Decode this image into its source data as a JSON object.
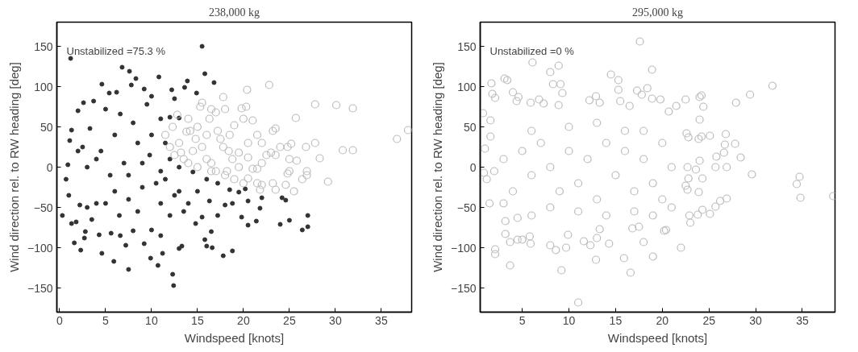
{
  "chart_data": [
    {
      "type": "scatter",
      "title": "238,000 kg",
      "xlabel": "Windspeed [knots]",
      "ylabel": "Wind direction rel. to RW heading [deg]",
      "annotations": [
        "Unstabilized =75.3 %"
      ],
      "xlim": [
        -0.3,
        38.3
      ],
      "ylim": [
        -180,
        180
      ],
      "xticks": [
        0,
        5,
        10,
        15,
        20,
        25,
        30,
        35
      ],
      "yticks": [
        -150,
        -100,
        -50,
        0,
        50,
        100,
        150
      ],
      "grid": false,
      "series": [
        {
          "color": "#333333",
          "marker": "circle",
          "x": [
            0.3,
            1.2,
            15.5,
            6.8,
            7.6,
            8.3,
            10.8,
            15.8,
            16.8,
            13.9,
            4.6,
            13.6,
            12.2,
            14.9,
            1.3,
            1.1,
            0.9,
            0.7,
            1.0,
            1.3,
            1.6,
            2.3,
            2.7,
            4.6,
            5.9,
            7.5,
            7.2,
            9.9,
            10.7,
            12.3,
            12.4,
            11.2,
            13.0,
            13.3,
            16.0,
            16.6,
            17.8,
            18.8,
            19.8,
            20.5,
            21.4,
            21.8,
            22.0,
            24.0,
            25.0,
            26.4,
            27.0,
            27.0,
            24.2,
            24.6,
            20.2,
            20.5,
            19.5,
            18.5,
            17.2,
            16.0,
            14.5,
            13.0,
            12.0,
            11.5,
            12.0,
            13.0,
            12.5,
            11.0,
            2.0,
            2.6,
            3.7,
            5.4,
            6.2,
            7.8,
            9.2,
            10.0,
            9.5,
            8.0,
            6.6,
            5.0,
            3.3,
            2.5,
            3.0,
            4.5,
            5.5,
            7.0,
            8.5,
            9.8,
            10.5,
            11.5,
            9.0,
            7.5,
            6.0,
            4.0,
            3.0,
            2.2,
            2.8,
            4.3,
            5.6,
            6.6,
            8.0,
            9.2,
            10.0,
            11.0,
            12.0,
            13.5,
            14.8,
            15.5,
            16.3,
            17.2,
            18.0,
            18.8,
            15.0,
            13.0,
            11.0,
            8.5,
            6.5,
            5.0,
            3.5,
            1.8,
            9.0,
            6.0,
            4.0,
            2.0,
            7.5,
            10.0,
            11.0,
            12.5,
            14.0,
            15.8,
            16.5
          ],
          "values": [
            -60,
            135,
            150,
            124,
            119,
            110,
            112,
            116,
            105,
            107,
            103,
            99,
            96,
            92,
            46,
            33,
            3,
            -15,
            -35,
            -70,
            -94,
            -103,
            -88,
            -107,
            -117,
            -127,
            -97,
            -113,
            -122,
            -133,
            -147,
            -107,
            -101,
            -98,
            -98,
            -100,
            -110,
            -104,
            -62,
            -72,
            -67,
            -51,
            -38,
            -71,
            -66,
            -78,
            -74,
            -60,
            -38,
            -41,
            -27,
            -42,
            -31,
            -28,
            -20,
            -15,
            -6,
            0,
            10,
            30,
            62,
            61,
            85,
            60,
            70,
            80,
            82,
            92,
            93,
            102,
            97,
            88,
            78,
            55,
            66,
            72,
            48,
            25,
            0,
            20,
            -10,
            5,
            30,
            15,
            -20,
            -15,
            -25,
            -40,
            -30,
            -45,
            -50,
            -47,
            -80,
            -84,
            -82,
            -85,
            -79,
            -95,
            -78,
            -85,
            -60,
            -55,
            -70,
            -62,
            -42,
            -60,
            -47,
            -45,
            -30,
            -30,
            -45,
            -55,
            -60,
            -45,
            -65,
            -68,
            5,
            40,
            10,
            20,
            -10,
            40,
            -5,
            -35,
            -45,
            -90,
            -80
          ]
        },
        {
          "color": "#bbbbbb",
          "marker": "circle_open",
          "x": [
            12.8,
            12.3,
            14.0,
            15.5,
            15.3,
            16.5,
            17.0,
            17.8,
            18.0,
            19.8,
            20.3,
            20.4,
            22.8,
            20.0,
            21.0,
            19.0,
            18.5,
            17.5,
            16.0,
            15.0,
            14.2,
            13.0,
            12.0,
            11.5,
            12.5,
            13.5,
            14.5,
            15.5,
            16.5,
            17.0,
            18.0,
            19.0,
            20.0,
            20.5,
            21.5,
            21.8,
            22.0,
            21.0,
            22.0,
            22.5,
            23.0,
            23.5,
            24.0,
            24.8,
            25.2,
            25.0,
            25.8,
            25.0,
            24.8,
            24.6,
            25.5,
            23.2,
            23.5,
            26.9,
            26.9,
            26.4,
            26.8,
            27.8,
            28.3,
            29.2,
            27.8,
            30.1,
            31.9,
            30.8,
            31.9,
            36.7,
            37.9,
            25.7,
            23.5,
            23.2,
            22.0,
            21.5,
            20.5,
            19.5,
            18.8,
            17.8,
            16.0,
            15.0,
            14.0,
            13.2,
            16.5,
            18.2,
            19.5,
            20.5,
            21.5,
            14.8,
            13.8,
            16.3,
            17.2,
            18.4
          ],
          "values": [
            65,
            50,
            60,
            80,
            75,
            72,
            68,
            87,
            72,
            73,
            75,
            96,
            102,
            60,
            58,
            52,
            40,
            35,
            40,
            50,
            45,
            30,
            25,
            40,
            15,
            10,
            20,
            25,
            5,
            -5,
            -10,
            -15,
            -20,
            -14,
            -20,
            -28,
            -22,
            -2,
            5,
            15,
            18,
            15,
            25,
            25,
            29,
            10,
            8,
            -5,
            -8,
            -22,
            -30,
            -20,
            -28,
            -5,
            -10,
            -15,
            25,
            30,
            11,
            -18,
            78,
            77,
            73,
            21,
            21,
            35,
            46,
            61,
            48,
            45,
            30,
            40,
            30,
            18,
            10,
            25,
            10,
            0,
            5,
            18,
            -5,
            -5,
            0,
            12,
            -2,
            35,
            44,
            60,
            45,
            20
          ]
        }
      ]
    },
    {
      "type": "scatter",
      "title": "295,000 kg",
      "xlabel": "Windspeed [knots]",
      "ylabel": "Wind direction rel. to RW heading [deg]",
      "annotations": [
        "Unstabilized =0 %"
      ],
      "xlim": [
        0.5,
        38.5
      ],
      "ylim": [
        -180,
        180
      ],
      "xticks": [
        5,
        10,
        15,
        20,
        25,
        30,
        35
      ],
      "yticks": [
        -150,
        -100,
        -50,
        0,
        50,
        100,
        150
      ],
      "grid": false,
      "series": [
        {
          "color": "#bbbbbb",
          "marker": "circle_open",
          "x": [
            0.8,
            1.0,
            0.9,
            1.2,
            1.5,
            1.6,
            1.6,
            1.7,
            1.8,
            2.1,
            2.1,
            2.1,
            3.1,
            3.4,
            3.7,
            3.2,
            3.2,
            3.7,
            4.0,
            4.4,
            4.6,
            6.1,
            8.0,
            8.9,
            8.3,
            9.1,
            9.3,
            8.9,
            7.3,
            6.8,
            5.9,
            4.5,
            4.5,
            5.0,
            5.8,
            5.9,
            9.2,
            8.0,
            8.6,
            9.7,
            9.9,
            11.0,
            11.6,
            12.3,
            12.9,
            13.3,
            13.0,
            14.3,
            15.9,
            16.6,
            16.8,
            17.5,
            18.0,
            19.0,
            20.2,
            20.4,
            22.0,
            22.9,
            23.0,
            23.8,
            24.3,
            25.1,
            25.7,
            26.2,
            26.9,
            23.9,
            22.7,
            22.5,
            22.8,
            24.3,
            22.7,
            23.6,
            24.0,
            25.7,
            25.8,
            26.6,
            26.7,
            26.9,
            27.8,
            28.4,
            29.6,
            26.8,
            25.1,
            24.2,
            23.9,
            22.8,
            22.6,
            24.0,
            24.0,
            24.2,
            24.4,
            22.5,
            21.5,
            20.7,
            19.8,
            18.9,
            18.9,
            17.6,
            18.4,
            17.3,
            17.8,
            15.3,
            14.5,
            15.3,
            15.5,
            16.5,
            12.2,
            12.9,
            13.3,
            27.9,
            29.4,
            31.8,
            34.4,
            34.7,
            34.8,
            38.3,
            5,
            6,
            7,
            8,
            9,
            10,
            11,
            12,
            13,
            14,
            15,
            16,
            17,
            18,
            19,
            20,
            21,
            3,
            4,
            2,
            6,
            10,
            13,
            16,
            18,
            20,
            21,
            19,
            17,
            14,
            11,
            8,
            6,
            3
          ],
          "values": [
            67,
            23,
            -7,
            -15,
            -45,
            58,
            38,
            104,
            91,
            86,
            -102,
            -108,
            110,
            108,
            -122,
            -83,
            -67,
            -93,
            93,
            82,
            87,
            130,
            118,
            126,
            103,
            103,
            92,
            77,
            79,
            84,
            80,
            -63,
            -90,
            -90,
            -86,
            -95,
            -128,
            -97,
            -103,
            -100,
            -84,
            -168,
            -92,
            -97,
            -115,
            -77,
            -88,
            -95,
            -113,
            -131,
            -76,
            -74,
            -93,
            -111,
            -79,
            -78,
            -100,
            -60,
            -69,
            -59,
            -53,
            -58,
            -49,
            -42,
            -39,
            -31,
            -28,
            -23,
            -14,
            -14,
            0,
            -3,
            8,
            0,
            13,
            18,
            28,
            0,
            29,
            12,
            -9,
            41,
            39,
            38,
            35,
            37,
            42,
            59,
            87,
            89,
            75,
            84,
            76,
            69,
            84,
            85,
            121,
            156,
            98,
            95,
            90,
            108,
            115,
            96,
            82,
            76,
            83,
            88,
            80,
            80,
            90,
            101,
            -21,
            -12,
            -38,
            -36,
            20,
            -10,
            30,
            0,
            -30,
            20,
            -20,
            10,
            -40,
            30,
            -10,
            20,
            -30,
            10,
            -20,
            30,
            0,
            10,
            -30,
            -5,
            45,
            50,
            55,
            45,
            45,
            -40,
            -50,
            -60,
            -55,
            -60,
            -55,
            -50,
            -60,
            -45
          ]
        }
      ]
    }
  ]
}
